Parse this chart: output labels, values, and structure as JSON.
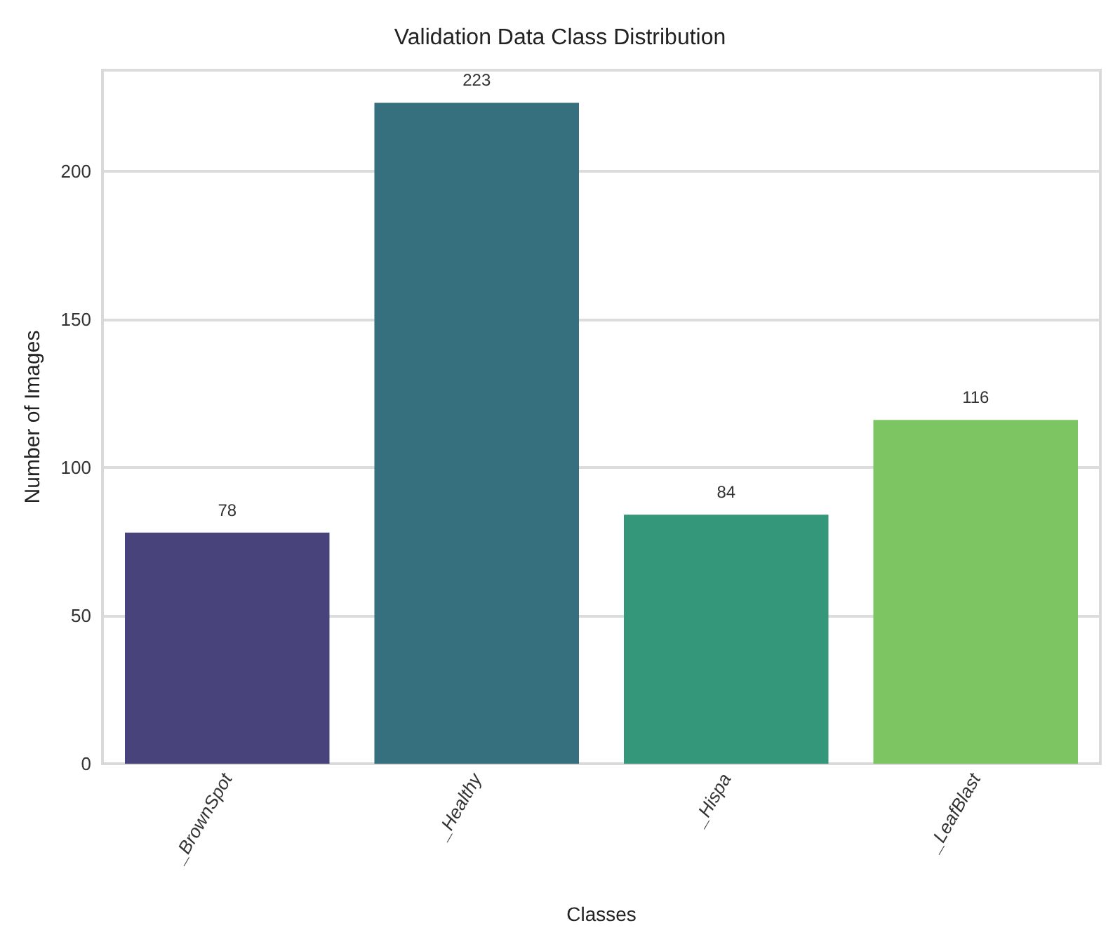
{
  "chart_data": {
    "type": "bar",
    "title": "Validation Data Class Distribution",
    "xlabel": "Classes",
    "ylabel": "Number of Images",
    "categories": [
      "_BrownSpot",
      "_Healthy",
      "_Hispa",
      "_LeafBlast"
    ],
    "values": [
      78,
      223,
      84,
      116
    ],
    "colors": [
      "#48437a",
      "#36707f",
      "#34977a",
      "#7dc463"
    ],
    "ylim": [
      0,
      234
    ],
    "yticks": [
      0,
      50,
      100,
      150,
      200
    ],
    "grid": "y",
    "data_labels": true
  }
}
